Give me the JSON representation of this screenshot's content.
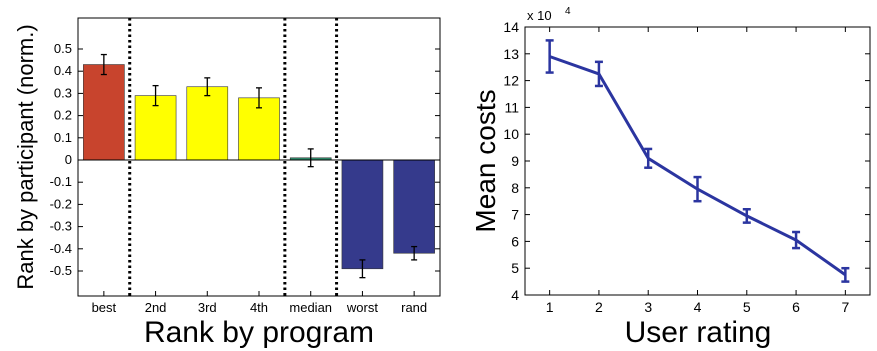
{
  "chart_data": [
    {
      "type": "bar",
      "categories": [
        "best",
        "2nd",
        "3rd",
        "4th",
        "median",
        "worst",
        "rand"
      ],
      "values": [
        0.43,
        0.29,
        0.33,
        0.28,
        0.01,
        -0.49,
        -0.42
      ],
      "errors": [
        0.045,
        0.045,
        0.04,
        0.045,
        0.04,
        0.04,
        0.03
      ],
      "bar_colors": [
        "#c8442d",
        "#ffff00",
        "#ffff00",
        "#ffff00",
        "#2e8b6a",
        "#353a8c",
        "#353a8c"
      ],
      "xlabel": "Rank by program",
      "ylabel": "Rank by participant (norm.)",
      "ylim": [
        -0.6,
        0.6
      ],
      "yticks": [
        "0.5",
        "0.4",
        "0.3",
        "0.2",
        "0.1",
        "0",
        "-0.1",
        "-0.2",
        "-0.3",
        "-0.4",
        "-0.5"
      ],
      "separators_after": [
        "best",
        "4th",
        "median"
      ],
      "grid": false
    },
    {
      "type": "line",
      "x": [
        1,
        2,
        3,
        4,
        5,
        6,
        7
      ],
      "y": [
        129000,
        122500,
        91000,
        79500,
        69500,
        60500,
        47500
      ],
      "errors": [
        6000,
        4500,
        3500,
        4500,
        2500,
        3000,
        2500
      ],
      "xticks": [
        "1",
        "2",
        "3",
        "4",
        "5",
        "6",
        "7"
      ],
      "yticks": [
        "4",
        "5",
        "6",
        "7",
        "8",
        "9",
        "10",
        "11",
        "12",
        "13",
        "14"
      ],
      "y_exponent_base": "x 10",
      "y_exponent_power": "4",
      "xlabel": "User rating",
      "ylabel": "Mean costs",
      "xlim": [
        0.5,
        7.5
      ],
      "ylim": [
        40000,
        140000
      ],
      "line_color": "#2b35a0",
      "grid": false
    }
  ]
}
